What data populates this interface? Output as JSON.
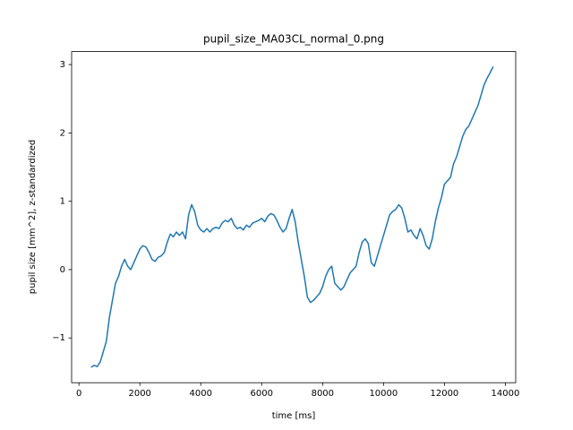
{
  "chart_data": {
    "type": "line",
    "title": "pupil_size_MA03CL_normal_0.png",
    "xlabel": "time [ms]",
    "ylabel": "pupil size [mm^2], z-standardized",
    "xlim": [
      -240,
      14340
    ],
    "ylim": [
      -1.655,
      3.19
    ],
    "xticks": [
      0,
      2000,
      4000,
      6000,
      8000,
      10000,
      12000,
      14000
    ],
    "yticks": [
      {
        "value": -1,
        "label": "−1"
      },
      0,
      1,
      2,
      3
    ],
    "grid": false,
    "series": [
      {
        "color": "#1f77b4",
        "x": [
          400,
          500,
          600,
          700,
          800,
          900,
          1000,
          1100,
          1200,
          1300,
          1400,
          1500,
          1600,
          1700,
          1800,
          1900,
          2000,
          2100,
          2200,
          2300,
          2400,
          2500,
          2600,
          2700,
          2800,
          2900,
          3000,
          3100,
          3200,
          3300,
          3400,
          3500,
          3600,
          3700,
          3800,
          3900,
          4000,
          4100,
          4200,
          4300,
          4400,
          4500,
          4600,
          4700,
          4800,
          4900,
          5000,
          5100,
          5200,
          5300,
          5400,
          5500,
          5600,
          5700,
          5800,
          5900,
          6000,
          6100,
          6200,
          6300,
          6400,
          6500,
          6600,
          6700,
          6800,
          6900,
          7000,
          7100,
          7200,
          7300,
          7400,
          7500,
          7600,
          7700,
          7800,
          7900,
          8000,
          8100,
          8200,
          8300,
          8400,
          8500,
          8600,
          8700,
          8800,
          8900,
          9000,
          9100,
          9200,
          9300,
          9400,
          9500,
          9600,
          9700,
          9800,
          9900,
          10000,
          10100,
          10200,
          10300,
          10400,
          10500,
          10600,
          10700,
          10800,
          10900,
          11000,
          11100,
          11200,
          11300,
          11400,
          11500,
          11600,
          11700,
          11800,
          11900,
          12000,
          12100,
          12200,
          12300,
          12400,
          12500,
          12600,
          12700,
          12800,
          12900,
          13000,
          13100,
          13200,
          13300,
          13400,
          13500,
          13600
        ],
        "values": [
          -1.43,
          -1.4,
          -1.42,
          -1.35,
          -1.2,
          -1.05,
          -0.7,
          -0.45,
          -0.2,
          -0.1,
          0.05,
          0.15,
          0.05,
          0.0,
          0.1,
          0.2,
          0.3,
          0.35,
          0.33,
          0.25,
          0.15,
          0.12,
          0.18,
          0.2,
          0.25,
          0.4,
          0.52,
          0.48,
          0.55,
          0.5,
          0.55,
          0.45,
          0.8,
          0.95,
          0.85,
          0.65,
          0.58,
          0.55,
          0.6,
          0.55,
          0.6,
          0.62,
          0.6,
          0.68,
          0.72,
          0.7,
          0.75,
          0.65,
          0.6,
          0.62,
          0.58,
          0.65,
          0.62,
          0.68,
          0.7,
          0.72,
          0.75,
          0.7,
          0.78,
          0.82,
          0.8,
          0.72,
          0.62,
          0.55,
          0.6,
          0.75,
          0.88,
          0.7,
          0.4,
          0.15,
          -0.1,
          -0.4,
          -0.48,
          -0.45,
          -0.4,
          -0.35,
          -0.25,
          -0.1,
          0.0,
          0.05,
          -0.2,
          -0.25,
          -0.3,
          -0.25,
          -0.15,
          -0.05,
          0.0,
          0.05,
          0.25,
          0.4,
          0.45,
          0.38,
          0.1,
          0.05,
          0.2,
          0.35,
          0.5,
          0.65,
          0.8,
          0.85,
          0.88,
          0.95,
          0.9,
          0.75,
          0.55,
          0.58,
          0.5,
          0.45,
          0.6,
          0.5,
          0.35,
          0.3,
          0.45,
          0.7,
          0.9,
          1.05,
          1.25,
          1.3,
          1.35,
          1.55,
          1.65,
          1.8,
          1.95,
          2.05,
          2.1,
          2.2,
          2.3,
          2.4,
          2.55,
          2.7,
          2.8,
          2.88,
          2.97
        ]
      }
    ]
  }
}
